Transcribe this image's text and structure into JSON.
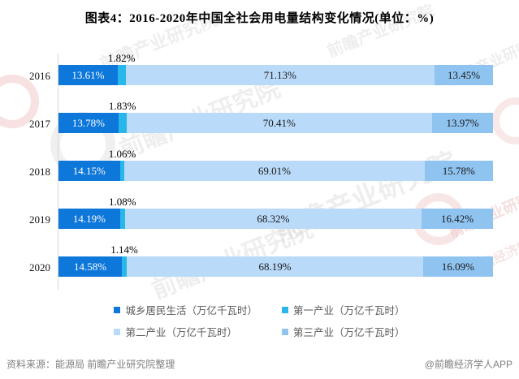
{
  "title": "图表4：2016-2020年中国全社会用电量结构变化情况(单位：%)",
  "chart_data": {
    "type": "bar",
    "orientation": "horizontal",
    "stacked": true,
    "unit": "%",
    "xlim": [
      0,
      100
    ],
    "grid": false,
    "legend_position": "bottom",
    "categories": [
      "2016",
      "2017",
      "2018",
      "2019",
      "2020"
    ],
    "series": [
      {
        "name": "城乡居民生活（万亿千瓦时）",
        "color": "#0d77da",
        "label_color": "#ffffff",
        "values": [
          13.61,
          13.78,
          14.15,
          14.19,
          14.58
        ]
      },
      {
        "name": "第一产业（万亿千瓦时）",
        "color": "#29b6ea",
        "label_color": "#000000",
        "values": [
          1.82,
          1.83,
          1.06,
          1.08,
          1.14
        ]
      },
      {
        "name": "第二产业（万亿千瓦时）",
        "color": "#b9daf8",
        "label_color": "#1a1a1a",
        "values": [
          71.13,
          70.41,
          69.01,
          68.32,
          68.19
        ]
      },
      {
        "name": "第三产业（万亿千瓦时）",
        "color": "#8fc3f0",
        "label_color": "#1a1a1a",
        "values": [
          13.45,
          13.97,
          15.78,
          16.42,
          16.09
        ]
      }
    ]
  },
  "footer": {
    "source": "资料来源：能源局 前瞻产业研究院整理",
    "credit": "@前瞻经济学人APP"
  },
  "watermarks": {
    "brand": "前瞻产业研究院",
    "econ": "前瞻经济学人"
  },
  "colors": {
    "axis": "#d9d9d9",
    "legend_text": "#595959",
    "footer_text": "#7f7f7f",
    "title_text": "#000000"
  }
}
